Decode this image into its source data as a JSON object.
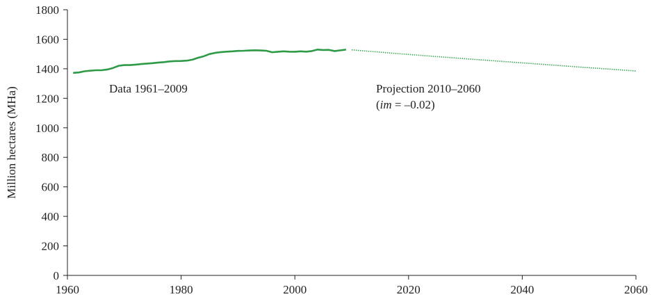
{
  "chart_data": {
    "type": "line",
    "ylabel": "Million hectares (MHa)",
    "xlim": [
      1960,
      2060
    ],
    "xticks": [
      1960,
      1980,
      2000,
      2020,
      2040,
      2060
    ],
    "ylim": [
      0,
      1800
    ],
    "yticks": [
      0,
      200,
      400,
      600,
      800,
      1000,
      1200,
      1400,
      1600,
      1800
    ],
    "grid": false,
    "annotations": [
      {
        "parts": [
          "Data 1961–2009"
        ]
      },
      {
        "parts": [
          "Projection 2010–2060"
        ]
      },
      {
        "parts": [
          "(",
          "im",
          " = –0.02)"
        ]
      }
    ],
    "series": [
      {
        "color": "#2e9a47",
        "linestyle": "solid",
        "x": [
          1961,
          1962,
          1963,
          1964,
          1965,
          1966,
          1967,
          1968,
          1969,
          1970,
          1971,
          1972,
          1973,
          1974,
          1975,
          1976,
          1977,
          1978,
          1979,
          1980,
          1981,
          1982,
          1983,
          1984,
          1985,
          1986,
          1987,
          1988,
          1989,
          1990,
          1991,
          1992,
          1993,
          1994,
          1995,
          1996,
          1997,
          1998,
          1999,
          2000,
          2001,
          2002,
          2003,
          2004,
          2005,
          2006,
          2007,
          2008,
          2009
        ],
        "values": [
          1372,
          1375,
          1383,
          1387,
          1390,
          1390,
          1395,
          1405,
          1420,
          1425,
          1425,
          1428,
          1432,
          1435,
          1438,
          1442,
          1445,
          1450,
          1452,
          1453,
          1455,
          1462,
          1475,
          1485,
          1500,
          1508,
          1513,
          1516,
          1518,
          1521,
          1522,
          1524,
          1525,
          1524,
          1522,
          1512,
          1515,
          1518,
          1516,
          1515,
          1518,
          1516,
          1520,
          1530,
          1527,
          1528,
          1520,
          1525,
          1530
        ]
      },
      {
        "color": "#3aa655",
        "linestyle": "dotted",
        "x": [
          2010,
          2020,
          2030,
          2040,
          2050,
          2060
        ],
        "values": [
          1528,
          1497,
          1468,
          1440,
          1412,
          1385
        ]
      }
    ]
  }
}
